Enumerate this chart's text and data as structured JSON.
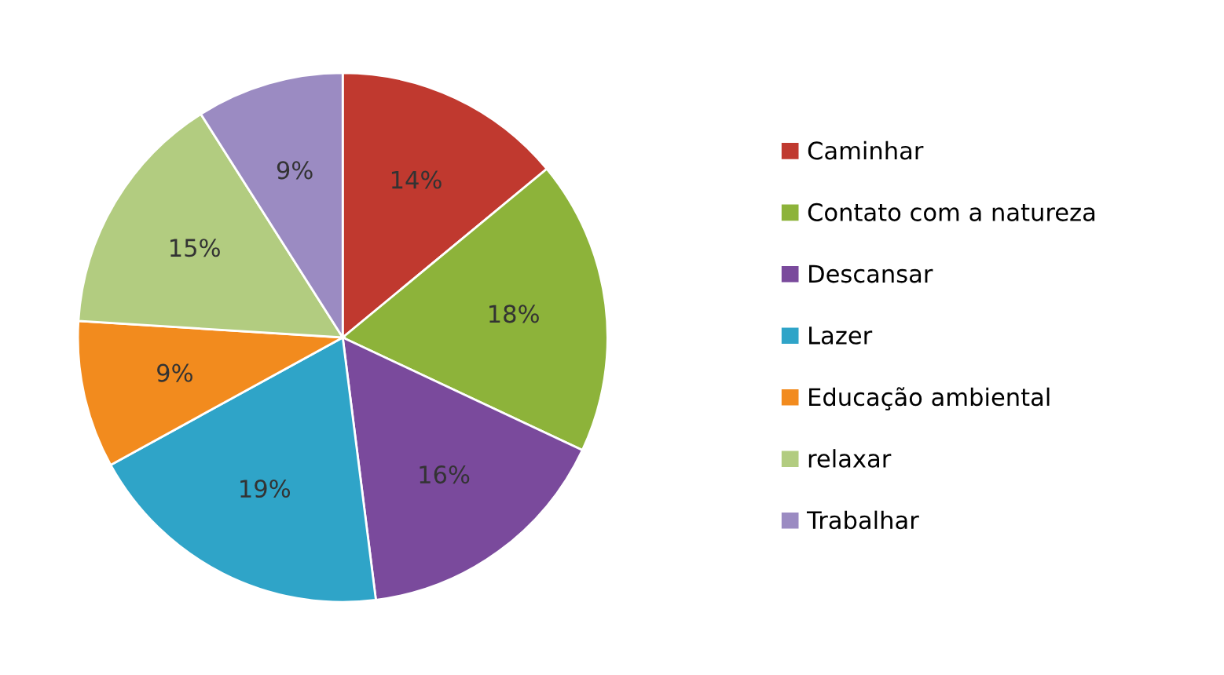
{
  "chart_data": {
    "type": "pie",
    "categories": [
      "Caminhar",
      "Contato com a natureza",
      "Descansar",
      "Lazer",
      "Educação ambiental",
      "relaxar",
      "Trabalhar"
    ],
    "values": [
      14,
      18,
      16,
      19,
      9,
      15,
      9
    ],
    "colors": [
      "#c0392f",
      "#8db33a",
      "#7a4a9c",
      "#2fa4c8",
      "#f28b1e",
      "#b2cc80",
      "#9b8bc2"
    ],
    "value_labels": [
      "14%",
      "18%",
      "16%",
      "19%",
      "9%",
      "15%",
      "9%"
    ],
    "legend": "right"
  }
}
